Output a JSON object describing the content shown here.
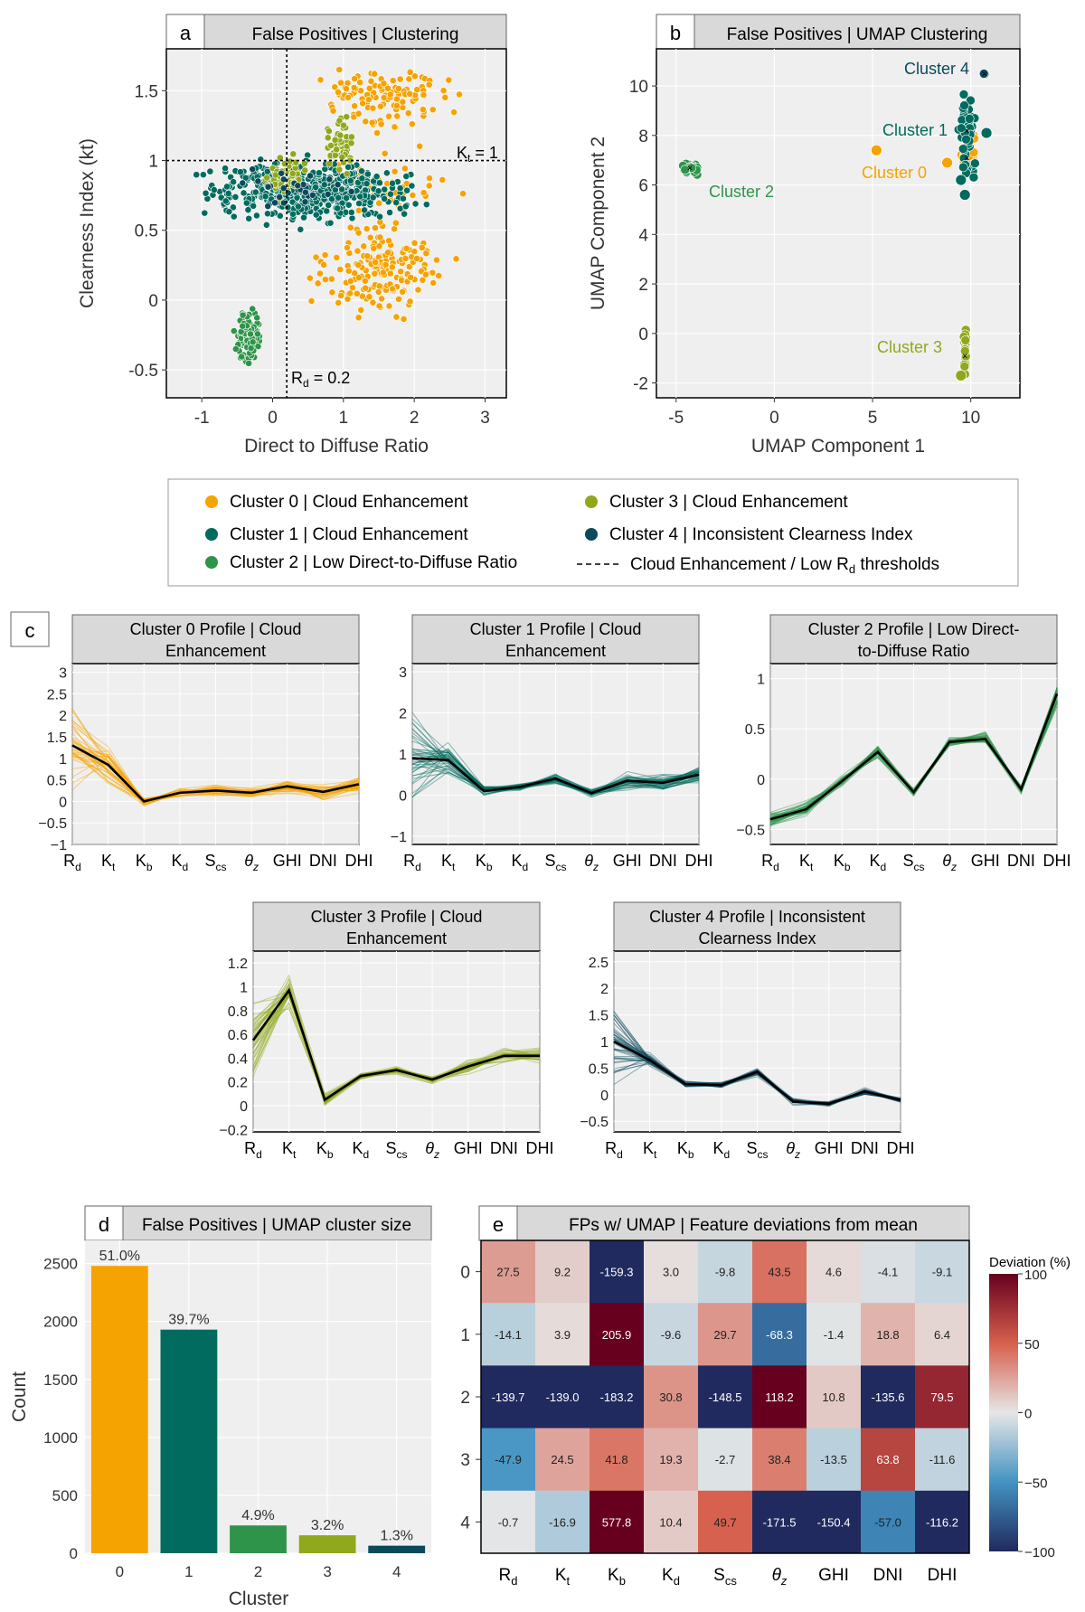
{
  "panels": {
    "a": {
      "letter": "a",
      "title": "False Positives | Clustering",
      "xlabel": "Direct to Diffuse Ratio",
      "ylabel": "Clearness Index (kt)",
      "xticks": [
        "-1",
        "0",
        "1",
        "2",
        "3"
      ],
      "yticks": [
        "-0.5",
        "0",
        "0.5",
        "1",
        "1.5"
      ],
      "kt_label_main": "K",
      "kt_label_sub": "t",
      "kt_label_val": " = 1",
      "rd_label_main": "R",
      "rd_label_sub": "d",
      "rd_label_val": " = 0.2"
    },
    "b": {
      "letter": "b",
      "title": "False Positives |  UMAP Clustering",
      "xlabel": "UMAP Component 1",
      "ylabel": "UMAP Component 2",
      "xticks": [
        "-5",
        "0",
        "5",
        "10"
      ],
      "yticks": [
        "-2",
        "0",
        "2",
        "4",
        "6",
        "8",
        "10"
      ],
      "annotations": [
        "Cluster 4",
        "Cluster 1",
        "Cluster 0",
        "Cluster 2",
        "Cluster 3"
      ]
    },
    "c": {
      "letter": "c"
    },
    "d": {
      "letter": "d",
      "title": "False Positives | UMAP cluster size",
      "xlabel": "Cluster",
      "ylabel": "Count"
    },
    "e": {
      "letter": "e",
      "title": "FPs w/ UMAP | Feature deviations from mean",
      "colorbar_title": "Deviation (%)",
      "colorbar_ticks": [
        "100",
        "50",
        "0",
        "−50",
        "−100"
      ]
    }
  },
  "legend": {
    "items": [
      "Cluster 0 | Cloud Enhancement",
      "Cluster 3 | Cloud Enhancement",
      "Cluster 1 | Cloud Enhancement",
      "Cluster 4 | Inconsistent Clearness Index",
      "Cluster 2 | Low Direct-to-Diffuse Ratio"
    ],
    "threshold_main": "Cloud Enhancement / Low R",
    "threshold_sub": "d",
    "threshold_end": " thresholds"
  },
  "colors": {
    "c0": "#f5a300",
    "c1": "#006b5e",
    "c2": "#2e9449",
    "c3": "#8fa81c",
    "c4": "#0b4a5c",
    "panel_bg": "#efefef",
    "header_bg": "#d9d9d9"
  },
  "feature_labels": [
    {
      "m": "R",
      "s": "d"
    },
    {
      "m": "K",
      "s": "t"
    },
    {
      "m": "K",
      "s": "b"
    },
    {
      "m": "K",
      "s": "d"
    },
    {
      "m": "S",
      "s": "cs"
    },
    {
      "m": "θ",
      "s": "z"
    },
    {
      "m": "GHI",
      "s": ""
    },
    {
      "m": "DNI",
      "s": ""
    },
    {
      "m": "DHI",
      "s": ""
    }
  ],
  "chart_data": [
    {
      "id": "a",
      "type": "scatter",
      "title": "False Positives | Clustering",
      "xlabel": "Direct to Diffuse Ratio",
      "ylabel": "Clearness Index (kt)",
      "xlim": [
        -1.5,
        3.3
      ],
      "ylim": [
        -0.7,
        1.8
      ],
      "thresholds": {
        "kt": 1,
        "rd": 0.2
      },
      "series": [
        {
          "name": "Cluster 0 | Cloud Enhancement",
          "clouds": [
            {
              "cx": 1.6,
              "cy": 1.45,
              "sx": 0.5,
              "sy": 0.12,
              "n": 120
            },
            {
              "cx": 1.5,
              "cy": 0.2,
              "sx": 0.55,
              "sy": 0.2,
              "n": 180
            },
            {
              "cx": 1.6,
              "cy": 0.8,
              "sx": 0.6,
              "sy": 0.15,
              "n": 60
            }
          ]
        },
        {
          "name": "Cluster 1 | Cloud Enhancement",
          "clouds": [
            {
              "cx": 0.5,
              "cy": 0.78,
              "sx": 0.9,
              "sy": 0.14,
              "n": 520
            }
          ]
        },
        {
          "name": "Cluster 2 | Low Direct-to-Diffuse Ratio",
          "clouds": [
            {
              "cx": -0.35,
              "cy": -0.25,
              "sx": 0.1,
              "sy": 0.13,
              "n": 120
            }
          ]
        },
        {
          "name": "Cluster 3 | Cloud Enhancement",
          "clouds": [
            {
              "cx": 0.2,
              "cy": 0.9,
              "sx": 0.2,
              "sy": 0.1,
              "n": 60
            },
            {
              "cx": 0.95,
              "cy": 1.1,
              "sx": 0.15,
              "sy": 0.12,
              "n": 50
            }
          ]
        },
        {
          "name": "Cluster 4 | Inconsistent Clearness Index",
          "clouds": [
            {
              "cx": 0.3,
              "cy": 0.8,
              "sx": 0.6,
              "sy": 0.1,
              "n": 30
            }
          ]
        }
      ]
    },
    {
      "id": "b",
      "type": "scatter",
      "title": "False Positives |  UMAP Clustering",
      "xlabel": "UMAP Component 1",
      "ylabel": "UMAP Component 2",
      "xlim": [
        -6,
        12.5
      ],
      "ylim": [
        -2.6,
        11.5
      ],
      "series": [
        {
          "name": "Cluster 0",
          "clouds": [
            {
              "cx": 9.9,
              "cy": 7.5,
              "sx": 0.25,
              "sy": 0.5,
              "n": 40
            }
          ],
          "extra": [
            [
              5.2,
              7.4
            ],
            [
              8.8,
              6.9
            ]
          ]
        },
        {
          "name": "Cluster 1",
          "clouds": [
            {
              "cx": 9.8,
              "cy": 8.0,
              "sx": 0.25,
              "sy": 1.0,
              "n": 60
            }
          ],
          "extra": [
            [
              10.8,
              8.1
            ],
            [
              9.7,
              5.6
            ],
            [
              9.5,
              6.2
            ]
          ]
        },
        {
          "name": "Cluster 2",
          "clouds": [
            {
              "cx": -4.3,
              "cy": 6.7,
              "sx": 0.3,
              "sy": 0.15,
              "n": 30
            }
          ]
        },
        {
          "name": "Cluster 3",
          "clouds": [
            {
              "cx": 9.7,
              "cy": -0.5,
              "sx": 0.05,
              "sy": 0.6,
              "n": 25
            }
          ],
          "extra": [
            [
              9.5,
              -1.7
            ]
          ]
        },
        {
          "name": "Cluster 4",
          "clouds": [
            {
              "cx": 10.7,
              "cy": 10.5,
              "sx": 0.05,
              "sy": 0.05,
              "n": 4
            }
          ]
        }
      ]
    },
    {
      "id": "c0",
      "type": "line",
      "title": "Cluster 0 Profile | Cloud Enhancement",
      "categories": [
        "Rd",
        "Kt",
        "Kb",
        "Kd",
        "Scs",
        "θz",
        "GHI",
        "DNI",
        "DHI"
      ],
      "mean": [
        1.3,
        0.85,
        0.0,
        0.2,
        0.25,
        0.2,
        0.35,
        0.22,
        0.4
      ],
      "spread": [
        1.2,
        0.6,
        0.12,
        0.12,
        0.15,
        0.15,
        0.2,
        0.25,
        0.25
      ],
      "ylim": [
        -1,
        3.2
      ],
      "yticks": [
        "3",
        "2.5",
        "2",
        "1.5",
        "1",
        "0.5",
        "0",
        "−0.5",
        "−1"
      ]
    },
    {
      "id": "c1",
      "type": "line",
      "title": "Cluster 1 Profile | Cloud Enhancement",
      "categories": [
        "Rd",
        "Kt",
        "Kb",
        "Kd",
        "Scs",
        "θz",
        "GHI",
        "DNI",
        "DHI"
      ],
      "mean": [
        0.9,
        0.85,
        0.1,
        0.2,
        0.4,
        0.05,
        0.35,
        0.3,
        0.5
      ],
      "spread": [
        1.4,
        0.5,
        0.15,
        0.12,
        0.15,
        0.15,
        0.25,
        0.3,
        0.3
      ],
      "ylim": [
        -1.2,
        3.2
      ],
      "yticks": [
        "3",
        "2",
        "1",
        "0",
        "−1"
      ]
    },
    {
      "id": "c2",
      "type": "line",
      "title": "Cluster 2 Profile | Low Direct-to-Diffuse Ratio",
      "categories": [
        "Rd",
        "Kt",
        "Kb",
        "Kd",
        "Scs",
        "θz",
        "GHI",
        "DNI",
        "DHI"
      ],
      "mean": [
        -0.4,
        -0.3,
        -0.02,
        0.27,
        -0.13,
        0.37,
        0.4,
        -0.1,
        0.85
      ],
      "spread": [
        0.08,
        0.1,
        0.06,
        0.08,
        0.05,
        0.06,
        0.08,
        0.06,
        0.15
      ],
      "ylim": [
        -0.65,
        1.15
      ],
      "yticks": [
        "1",
        "0.5",
        "0",
        "−0.5"
      ]
    },
    {
      "id": "c3",
      "type": "line",
      "title": "Cluster 3 Profile | Cloud Enhancement",
      "categories": [
        "Rd",
        "Kt",
        "Kb",
        "Kd",
        "Scs",
        "θz",
        "GHI",
        "DNI",
        "DHI"
      ],
      "mean": [
        0.55,
        0.97,
        0.05,
        0.25,
        0.3,
        0.22,
        0.33,
        0.42,
        0.42
      ],
      "spread": [
        0.4,
        0.15,
        0.06,
        0.03,
        0.04,
        0.04,
        0.08,
        0.08,
        0.08
      ],
      "ylim": [
        -0.22,
        1.3
      ],
      "yticks": [
        "1.2",
        "1",
        "0.8",
        "0.6",
        "0.4",
        "0.2",
        "0",
        "−0.2"
      ]
    },
    {
      "id": "c4",
      "type": "line",
      "title": "Cluster 4 Profile | Inconsistent Clearness Index",
      "categories": [
        "Rd",
        "Kt",
        "Kb",
        "Kd",
        "Scs",
        "θz",
        "GHI",
        "DNI",
        "DHI"
      ],
      "mean": [
        1.0,
        0.65,
        0.2,
        0.18,
        0.43,
        -0.13,
        -0.17,
        0.06,
        -0.1
      ],
      "spread": [
        0.9,
        0.15,
        0.08,
        0.06,
        0.1,
        0.08,
        0.06,
        0.08,
        0.06
      ],
      "ylim": [
        -0.7,
        2.7
      ],
      "yticks": [
        "2.5",
        "2",
        "1.5",
        "1",
        "0.5",
        "0",
        "−0.5"
      ]
    },
    {
      "id": "d",
      "type": "bar",
      "title": "False Positives | UMAP cluster size",
      "xlabel": "Cluster",
      "ylabel": "Count",
      "categories": [
        "0",
        "1",
        "2",
        "3",
        "4"
      ],
      "values": [
        2480,
        1930,
        240,
        155,
        65
      ],
      "labels": [
        "51.0%",
        "39.7%",
        "4.9%",
        "3.2%",
        "1.3%"
      ],
      "ylim": [
        0,
        2700
      ],
      "yticks": [
        0,
        500,
        1000,
        1500,
        2000,
        2500
      ]
    },
    {
      "id": "e",
      "type": "heatmap",
      "title": "FPs w/ UMAP | Feature deviations from mean",
      "rows": [
        "0",
        "1",
        "2",
        "3",
        "4"
      ],
      "values": [
        [
          27.5,
          9.2,
          -159.3,
          3.0,
          -9.8,
          43.5,
          4.6,
          -4.1,
          -9.1
        ],
        [
          -14.1,
          3.9,
          205.9,
          -9.6,
          29.7,
          -68.3,
          -1.4,
          18.8,
          6.4
        ],
        [
          -139.7,
          -139.0,
          -183.2,
          30.8,
          -148.5,
          118.2,
          10.8,
          -135.6,
          79.5
        ],
        [
          -47.9,
          24.5,
          41.8,
          19.3,
          -2.7,
          38.4,
          -13.5,
          63.8,
          -11.6
        ],
        [
          -0.7,
          -16.9,
          577.8,
          10.4,
          49.7,
          -171.5,
          -150.4,
          -57.0,
          -116.2
        ]
      ],
      "labels": [
        [
          "27.5",
          "9.2",
          "-159.3",
          "3.0",
          "-9.8",
          "43.5",
          "4.6",
          "-4.1",
          "-9.1"
        ],
        [
          "-14.1",
          "3.9",
          "205.9",
          "-9.6",
          "29.7",
          "-68.3",
          "-1.4",
          "18.8",
          "6.4"
        ],
        [
          "-139.7",
          "-139.0",
          "-183.2",
          "30.8",
          "-148.5",
          "118.2",
          "10.8",
          "-135.6",
          "79.5"
        ],
        [
          "-47.9",
          "24.5",
          "41.8",
          "19.3",
          "-2.7",
          "38.4",
          "-13.5",
          "63.8",
          "-11.6"
        ],
        [
          "-0.7",
          "-16.9",
          "577.8",
          "10.4",
          "49.7",
          "-171.5",
          "-150.4",
          "-57.0",
          "-116.2"
        ]
      ],
      "vmin": -100,
      "vmax": 100
    }
  ]
}
